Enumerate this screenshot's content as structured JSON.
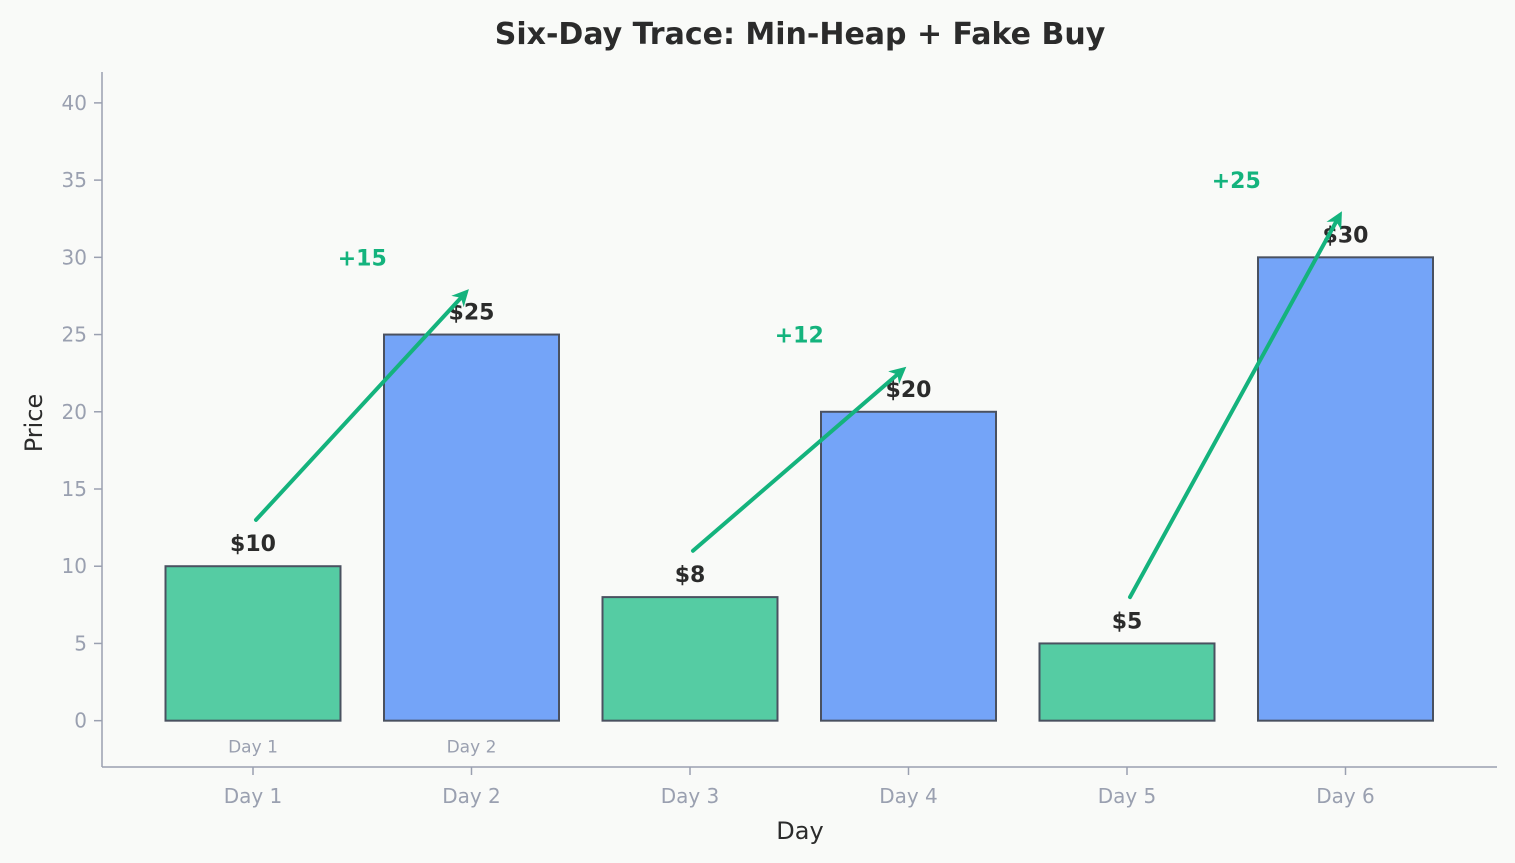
{
  "chart_data": {
    "type": "bar",
    "title": "Six-Day Trace: Min-Heap + Fake Buy",
    "xlabel": "Day",
    "ylabel": "Price",
    "categories": [
      "Day 1",
      "Day 2",
      "Day 3",
      "Day 4",
      "Day 5",
      "Day 6"
    ],
    "values": [
      10,
      25,
      8,
      20,
      5,
      30
    ],
    "value_labels": [
      "$10",
      "$25",
      "$8",
      "$20",
      "$5",
      "$30"
    ],
    "bar_notes": [
      "Day 1",
      "Day 2",
      "",
      "",
      "",
      ""
    ],
    "roles": [
      "buy",
      "sell",
      "buy",
      "sell",
      "buy",
      "sell"
    ],
    "ylim": [
      -3,
      42
    ],
    "yticks": [
      0,
      5,
      10,
      15,
      20,
      25,
      30,
      35,
      40
    ],
    "grid": false,
    "legend": "none",
    "annotations": [
      {
        "from": "Day 1",
        "to": "Day 2",
        "text": "+15",
        "y_start": 13,
        "y_end": 27.7,
        "text_y": 30
      },
      {
        "from": "Day 3",
        "to": "Day 4",
        "text": "+12",
        "y_start": 11,
        "y_end": 22.7,
        "text_y": 25
      },
      {
        "from": "Day 5",
        "to": "Day 6",
        "text": "+25",
        "y_start": 8,
        "y_end": 32.7,
        "text_y": 35
      }
    ],
    "colors": {
      "buy": "#55cca3",
      "sell": "#74a4f8",
      "bar_edge": "#4a5160",
      "arrow": "#14b37d",
      "axis": "#9aa0b0"
    }
  }
}
